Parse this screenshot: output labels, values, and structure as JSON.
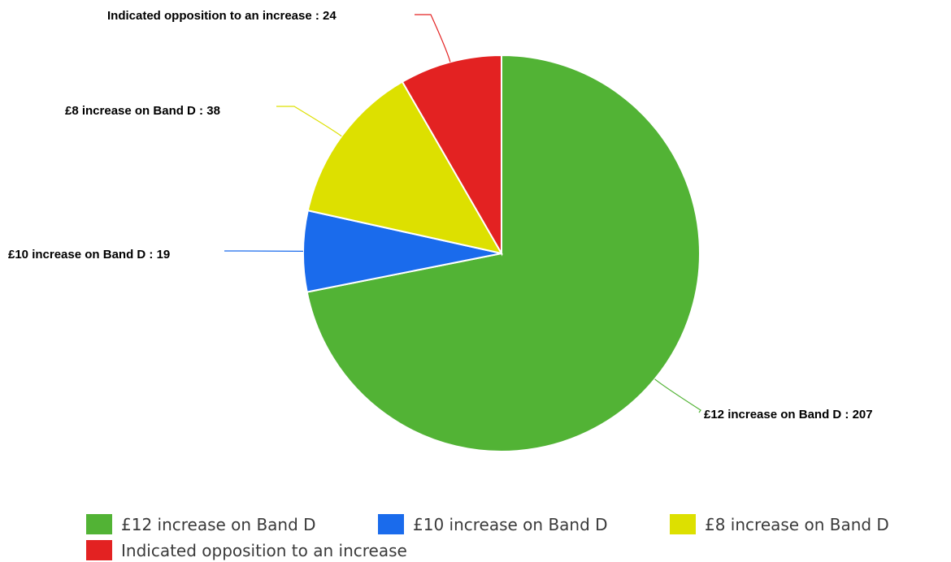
{
  "chart_data": {
    "type": "pie",
    "slices": [
      {
        "label": "£12 increase on Band D",
        "value": 207,
        "color": "#52b335"
      },
      {
        "label": "£10 increase on Band D",
        "value": 19,
        "color": "#1a6bec"
      },
      {
        "label": "£8 increase on Band D",
        "value": 38,
        "color": "#dde000"
      },
      {
        "label": "Indicated opposition to an increase",
        "value": 24,
        "color": "#e32222"
      }
    ],
    "data_labels": [
      "£12 increase on Band D : 207",
      "£10 increase on Band D : 19",
      "£8 increase on Band D : 38",
      "Indicated opposition to an increase : 24"
    ],
    "start_angle": "top (12 o'clock), clockwise",
    "legend_position": "bottom"
  }
}
